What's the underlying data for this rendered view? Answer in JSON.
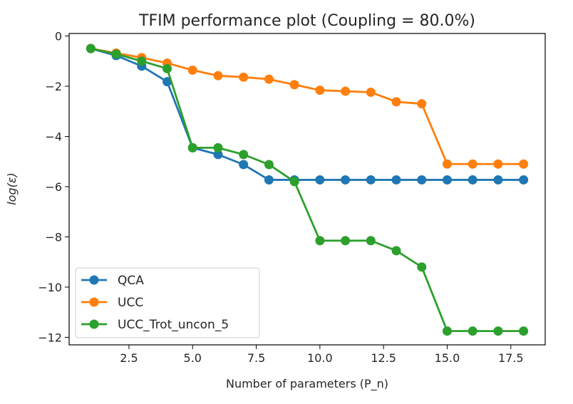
{
  "chart_data": {
    "type": "line",
    "title": "TFIM performance plot (Coupling = 80.0%)",
    "xlabel": "Number of parameters (P_n)",
    "ylabel": "log(ε)",
    "xlim": [
      0.15,
      18.85
    ],
    "ylim": [
      -12.3,
      0.1
    ],
    "xticks": [
      2.5,
      5.0,
      7.5,
      10.0,
      12.5,
      15.0,
      17.5
    ],
    "xtick_labels": [
      "2.5",
      "5.0",
      "7.5",
      "10.0",
      "12.5",
      "15.0",
      "17.5"
    ],
    "yticks": [
      0,
      -2,
      -4,
      -6,
      -8,
      -10,
      -12
    ],
    "ytick_labels": [
      "0",
      "−2",
      "−4",
      "−6",
      "−8",
      "−10",
      "−12"
    ],
    "grid": false,
    "legend_position": "bottom-left",
    "x": [
      1,
      2,
      3,
      4,
      5,
      6,
      7,
      8,
      9,
      10,
      11,
      12,
      13,
      14,
      15,
      16,
      17,
      18
    ],
    "series": [
      {
        "name": "QCA",
        "color": "#1f77b4",
        "values": [
          -0.5,
          -0.78,
          -1.2,
          -1.82,
          -4.45,
          -4.72,
          -5.12,
          -5.73,
          -5.73,
          -5.73,
          -5.73,
          -5.73,
          -5.73,
          -5.73,
          -5.73,
          -5.73,
          -5.73,
          -5.73
        ]
      },
      {
        "name": "UCC",
        "color": "#ff7f0e",
        "values": [
          -0.5,
          -0.68,
          -0.86,
          -1.08,
          -1.36,
          -1.58,
          -1.64,
          -1.72,
          -1.94,
          -2.16,
          -2.2,
          -2.24,
          -2.62,
          -2.7,
          -5.1,
          -5.1,
          -5.1,
          -5.1
        ]
      },
      {
        "name": "UCC_Trot_uncon_5",
        "color": "#2ca02c",
        "values": [
          -0.5,
          -0.72,
          -1.0,
          -1.3,
          -4.45,
          -4.45,
          -4.72,
          -5.12,
          -5.8,
          -8.15,
          -8.15,
          -8.15,
          -8.55,
          -9.2,
          -11.75,
          -11.75,
          -11.75,
          -11.75
        ]
      }
    ]
  }
}
